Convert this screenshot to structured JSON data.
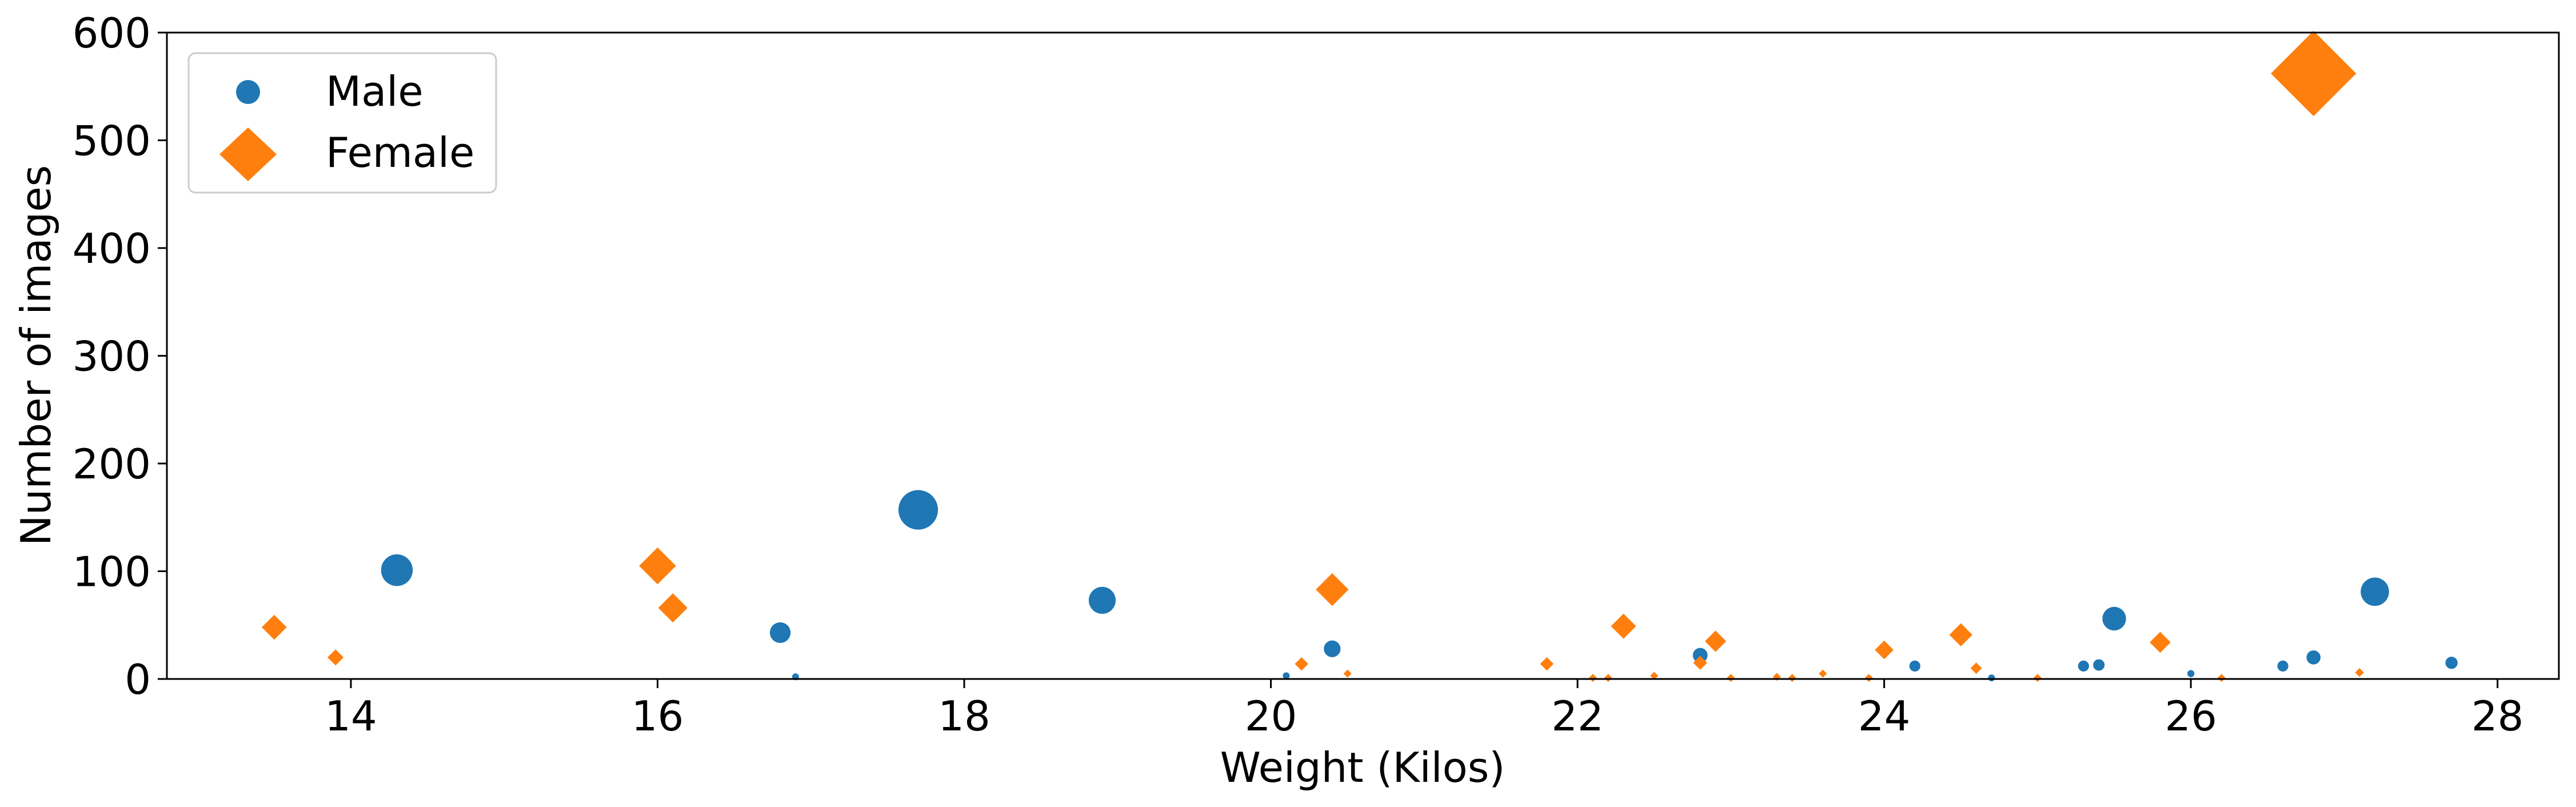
{
  "chart_data": {
    "type": "scatter",
    "title": "",
    "xlabel": "Weight (Kilos)",
    "ylabel": "Number of images",
    "xlim": [
      12.8,
      28.4
    ],
    "ylim": [
      0,
      600
    ],
    "xticks": [
      14,
      16,
      18,
      20,
      22,
      24,
      26,
      28
    ],
    "yticks": [
      0,
      100,
      200,
      300,
      400,
      500,
      600
    ],
    "grid": false,
    "legend_position": "top-left",
    "series": [
      {
        "name": "Male",
        "marker": "circle",
        "color": "#1f77b4",
        "points": [
          {
            "x": 14.3,
            "y": 101
          },
          {
            "x": 16.8,
            "y": 43
          },
          {
            "x": 16.9,
            "y": 2
          },
          {
            "x": 17.7,
            "y": 157
          },
          {
            "x": 18.9,
            "y": 73
          },
          {
            "x": 20.1,
            "y": 3
          },
          {
            "x": 20.4,
            "y": 28
          },
          {
            "x": 22.8,
            "y": 22
          },
          {
            "x": 24.2,
            "y": 12
          },
          {
            "x": 24.7,
            "y": 1
          },
          {
            "x": 25.3,
            "y": 12
          },
          {
            "x": 25.4,
            "y": 13
          },
          {
            "x": 25.5,
            "y": 56
          },
          {
            "x": 26.0,
            "y": 5
          },
          {
            "x": 26.6,
            "y": 12
          },
          {
            "x": 26.8,
            "y": 20
          },
          {
            "x": 27.2,
            "y": 81
          },
          {
            "x": 27.7,
            "y": 15
          }
        ]
      },
      {
        "name": "Female",
        "marker": "diamond",
        "color": "#ff7f0e",
        "points": [
          {
            "x": 13.5,
            "y": 48
          },
          {
            "x": 13.9,
            "y": 20
          },
          {
            "x": 16.0,
            "y": 105
          },
          {
            "x": 16.1,
            "y": 66
          },
          {
            "x": 20.2,
            "y": 14
          },
          {
            "x": 20.4,
            "y": 83
          },
          {
            "x": 20.5,
            "y": 5
          },
          {
            "x": 21.8,
            "y": 14
          },
          {
            "x": 22.1,
            "y": 1
          },
          {
            "x": 22.2,
            "y": 1
          },
          {
            "x": 22.3,
            "y": 49
          },
          {
            "x": 22.5,
            "y": 3
          },
          {
            "x": 22.8,
            "y": 15
          },
          {
            "x": 22.9,
            "y": 35
          },
          {
            "x": 23.0,
            "y": 1
          },
          {
            "x": 23.3,
            "y": 2
          },
          {
            "x": 23.4,
            "y": 1
          },
          {
            "x": 23.6,
            "y": 5
          },
          {
            "x": 23.9,
            "y": 1
          },
          {
            "x": 24.0,
            "y": 27
          },
          {
            "x": 24.5,
            "y": 41
          },
          {
            "x": 24.6,
            "y": 10
          },
          {
            "x": 25.0,
            "y": 1
          },
          {
            "x": 25.8,
            "y": 34
          },
          {
            "x": 26.2,
            "y": 1
          },
          {
            "x": 26.8,
            "y": 562
          },
          {
            "x": 27.1,
            "y": 6
          }
        ]
      }
    ]
  }
}
